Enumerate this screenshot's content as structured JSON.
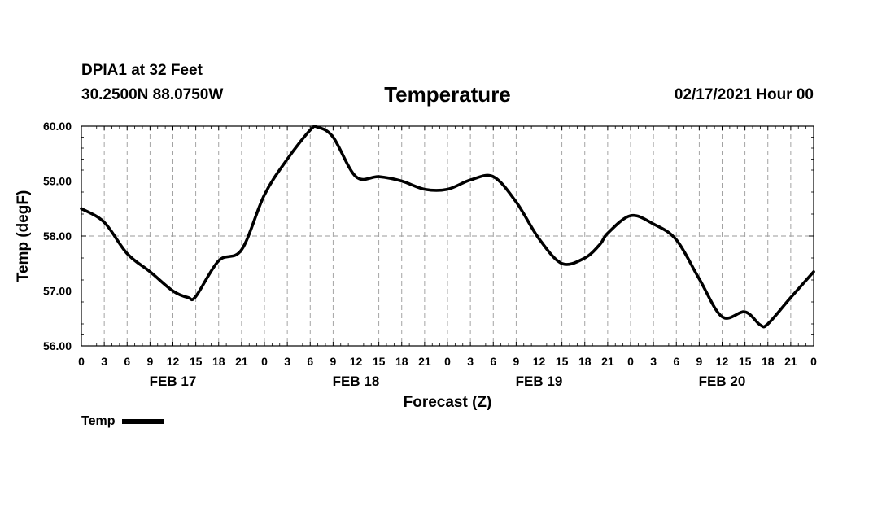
{
  "header": {
    "station": "DPIA1 at 32 Feet",
    "coords": "30.2500N 88.0750W",
    "run_time": "02/17/2021 Hour 00"
  },
  "chart_data": {
    "type": "line",
    "title": "Temperature",
    "xlabel": "Forecast (Z)",
    "ylabel": "Temp (degF)",
    "x_unit": "forecast hour from 02/17/2021 00Z",
    "xlim": [
      0,
      96
    ],
    "ylim": [
      56,
      60
    ],
    "y_ticks": [
      "56.00",
      "57.00",
      "58.00",
      "59.00",
      "60.00"
    ],
    "x_tick_values": [
      0,
      3,
      6,
      9,
      12,
      15,
      18,
      21,
      24,
      27,
      30,
      33,
      36,
      39,
      42,
      45,
      48,
      51,
      54,
      57,
      60,
      63,
      66,
      69,
      72,
      75,
      78,
      81,
      84,
      87,
      90,
      93,
      96
    ],
    "x_tick_labels": [
      "0",
      "3",
      "6",
      "9",
      "12",
      "15",
      "18",
      "21",
      "0",
      "3",
      "6",
      "9",
      "12",
      "15",
      "18",
      "21",
      "0",
      "3",
      "6",
      "9",
      "12",
      "15",
      "18",
      "21",
      "0",
      "3",
      "6",
      "9",
      "12",
      "15",
      "18",
      "21",
      "0"
    ],
    "day_labels": [
      {
        "label": "FEB 17",
        "x": 12
      },
      {
        "label": "FEB 18",
        "x": 36
      },
      {
        "label": "FEB 19",
        "x": 60
      },
      {
        "label": "FEB 20",
        "x": 84
      }
    ],
    "grid": true,
    "legend_position": "bottom-left",
    "series": [
      {
        "name": "Temp",
        "color": "#000000",
        "x": [
          0,
          3,
          6,
          9,
          12,
          14,
          15,
          18,
          21,
          24,
          27,
          30,
          31,
          33,
          36,
          39,
          42,
          45,
          48,
          51,
          54,
          57,
          60,
          63,
          66,
          68,
          69,
          72,
          75,
          78,
          81,
          84,
          87,
          89,
          90,
          93,
          96
        ],
        "y": [
          58.5,
          58.25,
          57.68,
          57.35,
          57.0,
          56.88,
          56.9,
          57.55,
          57.75,
          58.75,
          59.4,
          59.93,
          59.98,
          59.8,
          59.08,
          59.08,
          59.0,
          58.85,
          58.85,
          59.02,
          59.08,
          58.62,
          57.95,
          57.5,
          57.6,
          57.85,
          58.05,
          58.37,
          58.22,
          57.93,
          57.22,
          56.53,
          56.62,
          56.38,
          56.4,
          56.88,
          57.35
        ]
      }
    ]
  }
}
